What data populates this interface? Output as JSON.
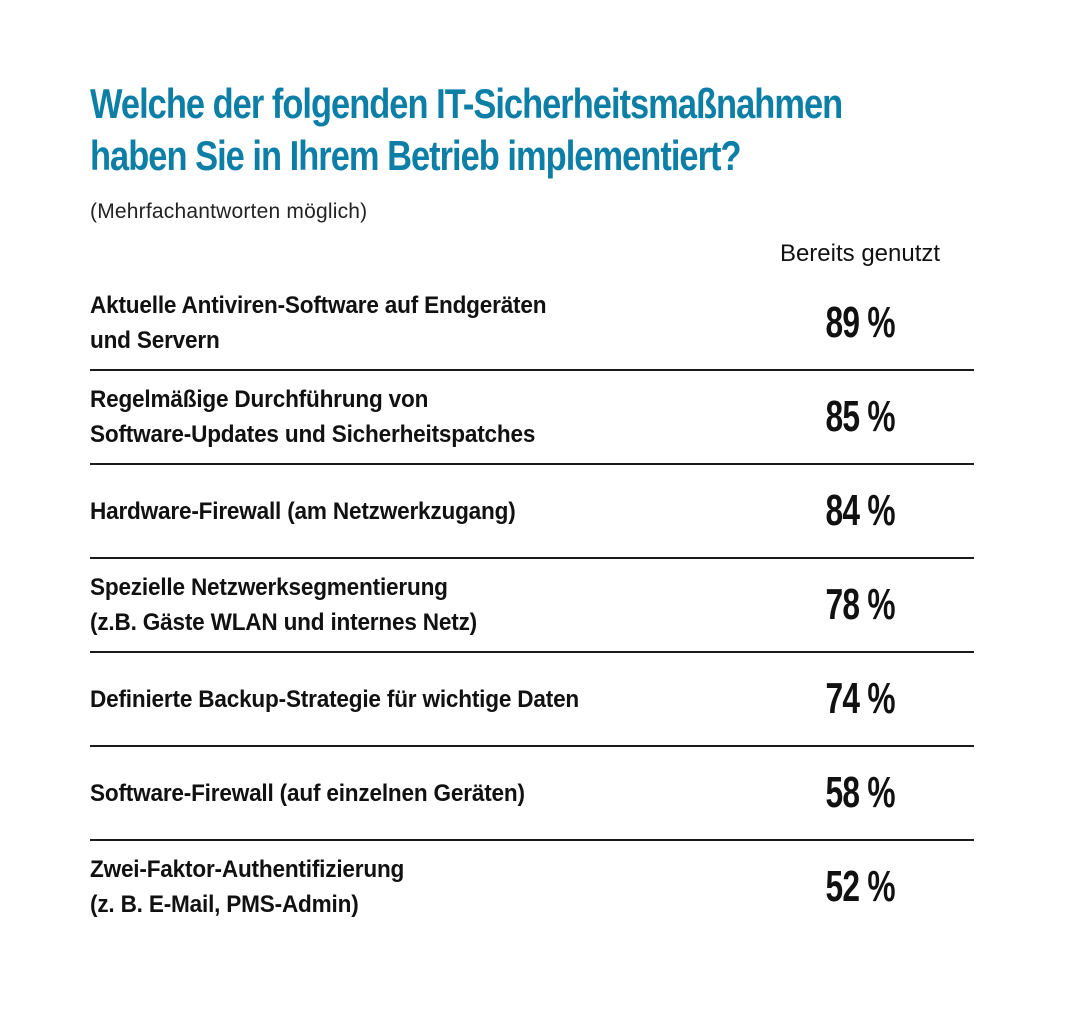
{
  "chart_data": {
    "type": "table",
    "title_lines": [
      "Welche der folgenden IT-Sicherheitsmaßnahmen",
      "haben Sie in Ihrem Betrieb implementiert?"
    ],
    "subtitle": "(Mehrfachantworten möglich)",
    "column_header": "Bereits genutzt",
    "unit": "%",
    "rows": [
      {
        "label_lines": [
          "Aktuelle Antiviren-Software auf Endgeräten",
          "und Servern"
        ],
        "value": 89,
        "value_text": "89 %"
      },
      {
        "label_lines": [
          "Regelmäßige Durchführung von",
          "Software-Updates und Sicherheitspatches"
        ],
        "value": 85,
        "value_text": "85 %"
      },
      {
        "label_lines": [
          "Hardware-Firewall (am Netzwerkzugang)"
        ],
        "value": 84,
        "value_text": "84 %"
      },
      {
        "label_lines": [
          "Spezielle Netzwerksegmentierung",
          "(z.B. Gäste WLAN und internes Netz)"
        ],
        "value": 78,
        "value_text": "78 %"
      },
      {
        "label_lines": [
          "Definierte Backup-Strategie für wichtige Daten"
        ],
        "value": 74,
        "value_text": "74 %"
      },
      {
        "label_lines": [
          "Software-Firewall (auf einzelnen Geräten)"
        ],
        "value": 58,
        "value_text": "58 %"
      },
      {
        "label_lines": [
          "Zwei-Faktor-Authentifizierung",
          "(z. B. E-Mail, PMS-Admin)"
        ],
        "value": 52,
        "value_text": "52 %"
      }
    ],
    "colors": {
      "title": "#0d7fa6",
      "text": "#111111",
      "divider": "#1a1a1a"
    }
  }
}
